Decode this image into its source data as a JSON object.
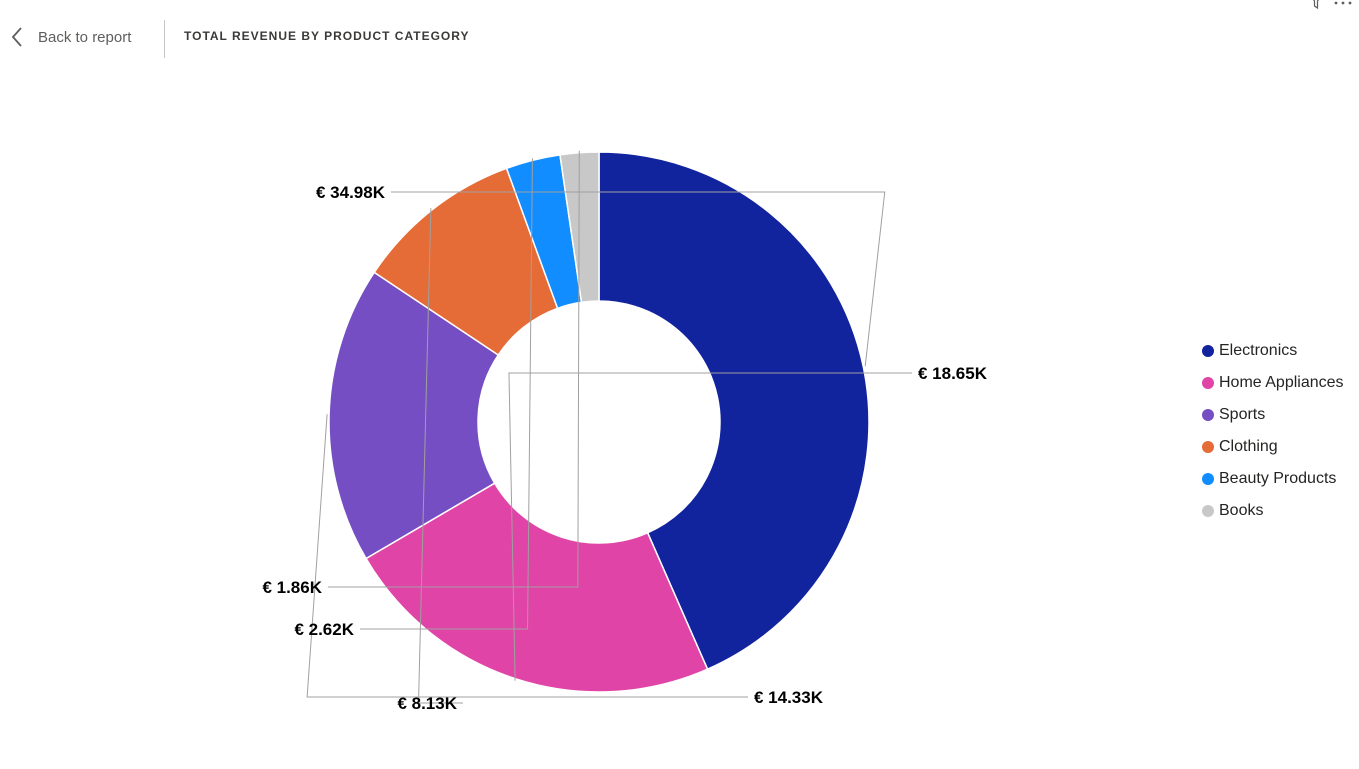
{
  "header": {
    "back_label": "Back to report",
    "back_icon": "chevron-left-icon",
    "title": "TOTAL REVENUE BY PRODUCT CATEGORY",
    "filter_icon": "filter-icon",
    "more_icon": "more-options-icon"
  },
  "chart_data": {
    "type": "pie",
    "donut": true,
    "title": "TOTAL REVENUE BY PRODUCT CATEGORY",
    "legend_position": "right",
    "categories": [
      "Electronics",
      "Home Appliances",
      "Sports",
      "Clothing",
      "Beauty Products",
      "Books"
    ],
    "values": [
      34.98,
      18.65,
      14.33,
      8.13,
      2.62,
      1.86
    ],
    "value_unit": "€ K",
    "data_labels": [
      "€ 34.98K",
      "€ 18.65K",
      "€ 14.33K",
      "€ 8.13K",
      "€ 2.62K",
      "€ 1.86K"
    ],
    "colors": [
      "#12239E",
      "#E044A7",
      "#744EC2",
      "#E66C37",
      "#118DFF",
      "#C8C8C8"
    ]
  }
}
